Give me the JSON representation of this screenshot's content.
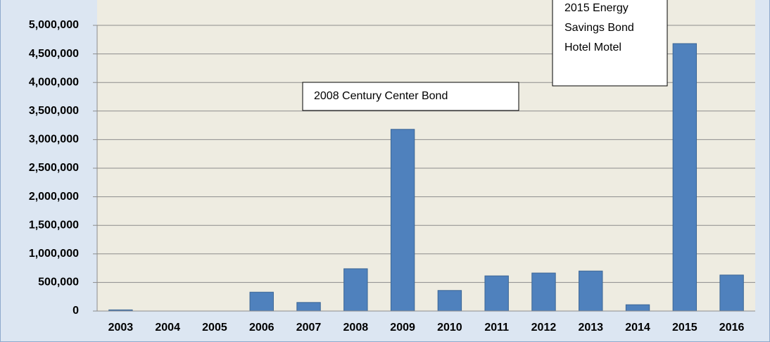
{
  "chart_data": {
    "type": "bar",
    "categories": [
      "2003",
      "2004",
      "2005",
      "2006",
      "2007",
      "2008",
      "2009",
      "2010",
      "2011",
      "2012",
      "2013",
      "2014",
      "2015",
      "2016"
    ],
    "values": [
      20000,
      0,
      0,
      330000,
      150000,
      740000,
      3180000,
      360000,
      615000,
      665000,
      700000,
      110000,
      4680000,
      630000
    ],
    "color": "#4f81bd",
    "ylim": [
      0,
      5000000
    ],
    "yticks": [
      0,
      {
        "value": 500000,
        "label": "500,000"
      },
      {
        "value": 1000000,
        "label": "1,000,000"
      },
      {
        "value": 1500000,
        "label": "1,500,000"
      },
      {
        "value": 2000000,
        "label": "2,000,000"
      },
      {
        "value": 2500000,
        "label": "2,500,000"
      },
      {
        "value": 3000000,
        "label": "3,000,000"
      },
      {
        "value": 3500000,
        "label": "3,500,000"
      },
      {
        "value": 4000000,
        "label": "4,000,000"
      },
      {
        "value": 4500000,
        "label": "4,500,000"
      },
      {
        "value": 5000000,
        "label": "5,000,000"
      }
    ],
    "grid": true,
    "annotations": [
      [
        "2008 Century Center Bond"
      ],
      [
        "2015 Energy",
        "Savings Bond",
        "Hotel Motel"
      ]
    ]
  }
}
